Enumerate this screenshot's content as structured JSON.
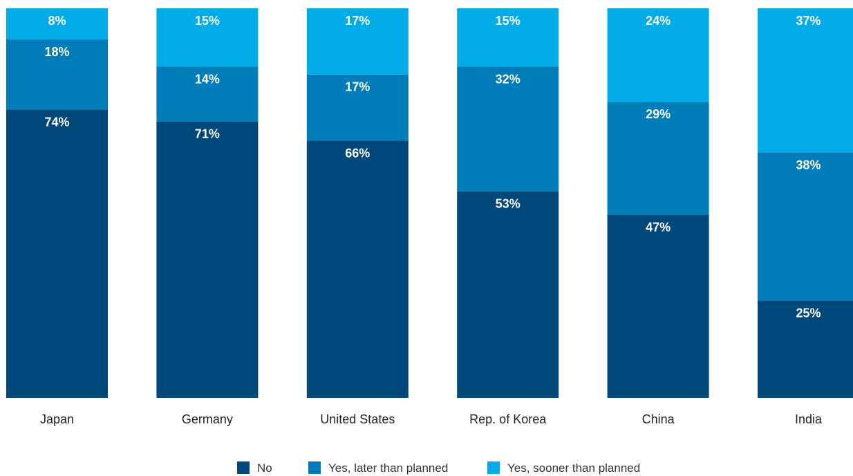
{
  "chart_data": {
    "type": "bar",
    "stacked": true,
    "categories": [
      "Japan",
      "Germany",
      "United States",
      "Rep. of Korea",
      "China",
      "India"
    ],
    "series": [
      {
        "name": "No",
        "color": "#00487a",
        "values": [
          74,
          71,
          66,
          53,
          47,
          25
        ]
      },
      {
        "name": "Yes, later than planned",
        "color": "#007cb8",
        "values": [
          18,
          14,
          17,
          32,
          29,
          38
        ]
      },
      {
        "name": "Yes, sooner than planned",
        "color": "#00abe8",
        "values": [
          8,
          15,
          17,
          15,
          24,
          37
        ]
      }
    ],
    "value_format": "{v}%",
    "ylim": [
      0,
      100
    ],
    "grid": false,
    "legend_position": "bottom-center"
  }
}
